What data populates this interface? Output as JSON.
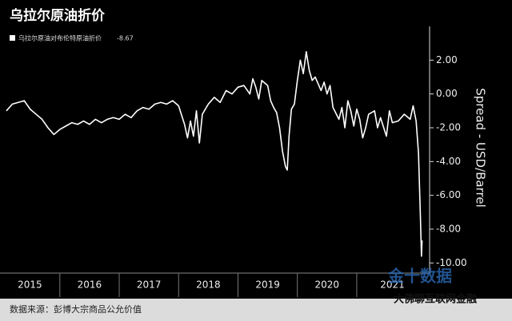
{
  "chart_data": {
    "type": "line",
    "title": "乌拉尔原油折价",
    "x": [
      2015.1,
      2015.2,
      2015.3,
      2015.4,
      2015.5,
      2015.6,
      2015.7,
      2015.8,
      2015.9,
      2016.0,
      2016.1,
      2016.2,
      2016.3,
      2016.4,
      2016.5,
      2016.6,
      2016.7,
      2016.8,
      2016.9,
      2017.0,
      2017.1,
      2017.2,
      2017.3,
      2017.4,
      2017.5,
      2017.6,
      2017.7,
      2017.8,
      2017.9,
      2018.0,
      2018.1,
      2018.15,
      2018.2,
      2018.25,
      2018.3,
      2018.35,
      2018.4,
      2018.5,
      2018.6,
      2018.7,
      2018.8,
      2018.9,
      2019.0,
      2019.1,
      2019.2,
      2019.25,
      2019.3,
      2019.35,
      2019.4,
      2019.5,
      2019.55,
      2019.6,
      2019.65,
      2019.7,
      2019.75,
      2019.8,
      2019.83,
      2019.86,
      2019.9,
      2019.95,
      2020.0,
      2020.05,
      2020.1,
      2020.15,
      2020.2,
      2020.25,
      2020.3,
      2020.4,
      2020.45,
      2020.5,
      2020.55,
      2020.6,
      2020.7,
      2020.75,
      2020.8,
      2020.85,
      2020.9,
      2020.95,
      2021.0,
      2021.05,
      2021.1,
      2021.15,
      2021.2,
      2021.3,
      2021.35,
      2021.4,
      2021.5,
      2021.55,
      2021.6,
      2021.7,
      2021.8,
      2021.9,
      2021.95,
      2022.0,
      2022.04,
      2022.07,
      2022.09,
      2022.1
    ],
    "series": [
      {
        "name": "乌拉尔原油对布伦特原油折价",
        "last_value": -8.67,
        "color": "#ffffff",
        "values": [
          -1.0,
          -0.6,
          -0.5,
          -0.4,
          -0.9,
          -1.2,
          -1.5,
          -2.0,
          -2.4,
          -2.1,
          -1.9,
          -1.7,
          -1.8,
          -1.6,
          -1.8,
          -1.5,
          -1.7,
          -1.5,
          -1.4,
          -1.5,
          -1.2,
          -1.4,
          -1.0,
          -0.8,
          -0.9,
          -0.6,
          -0.5,
          -0.6,
          -0.4,
          -0.7,
          -1.8,
          -2.6,
          -1.6,
          -2.5,
          -1.0,
          -2.9,
          -1.2,
          -0.6,
          -0.2,
          -0.5,
          0.2,
          0.0,
          0.4,
          0.5,
          0.0,
          0.9,
          0.4,
          -0.3,
          0.8,
          0.5,
          -0.4,
          -0.8,
          -1.1,
          -2.0,
          -3.4,
          -4.3,
          -4.5,
          -2.5,
          -0.9,
          -0.6,
          0.8,
          2.0,
          1.2,
          2.5,
          1.4,
          0.8,
          1.0,
          0.2,
          0.7,
          0.0,
          0.5,
          -0.8,
          -1.5,
          -0.8,
          -2.0,
          -0.4,
          -1.0,
          -1.9,
          -0.9,
          -1.5,
          -2.6,
          -2.0,
          -1.2,
          -1.0,
          -2.0,
          -1.4,
          -2.5,
          -1.0,
          -1.7,
          -1.6,
          -1.2,
          -1.5,
          -0.7,
          -1.6,
          -3.5,
          -7.0,
          -9.6,
          -8.67
        ]
      }
    ],
    "xlim": [
      2015.1,
      2022.2
    ],
    "xticks": [
      2016,
      2017,
      2018,
      2019,
      2020,
      2021
    ],
    "x_labels": [
      "2015",
      "2016",
      "2017",
      "2018",
      "2019",
      "2020",
      "2021"
    ],
    "ylim": [
      -10.6,
      4
    ],
    "yticks": [
      {
        "value": 2,
        "label": "2.00"
      },
      {
        "value": 0,
        "label": "0.00"
      },
      {
        "value": -2,
        "label": "-2.00"
      },
      {
        "value": -4,
        "label": "-4.00"
      },
      {
        "value": -6,
        "label": "-6.00"
      },
      {
        "value": -8,
        "label": "-8.00"
      },
      {
        "value": -10,
        "label": "-10.00"
      }
    ],
    "y_axis_label": "Spread - USD/Barrel",
    "source": "数据来源：彭博大宗商品公允价值",
    "watermarks": [
      "金十数据",
      "大佛聊互联网金融"
    ]
  }
}
